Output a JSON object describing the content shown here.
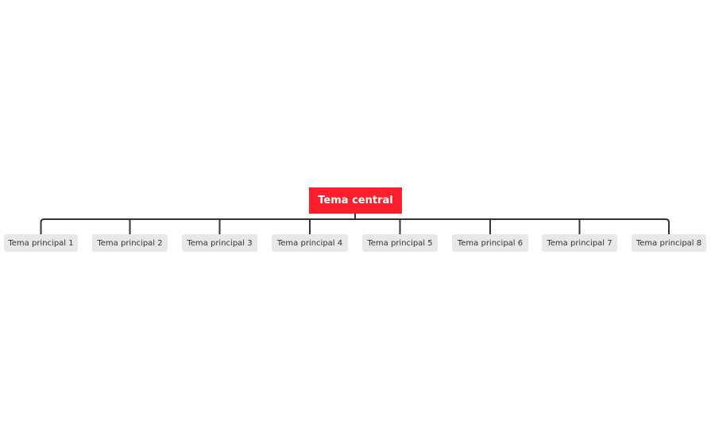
{
  "central_topic": {
    "label": "Tema central",
    "color": "#fb1f2e"
  },
  "main_topics": [
    {
      "label": "Tema principal 1"
    },
    {
      "label": "Tema principal 2"
    },
    {
      "label": "Tema principal 3"
    },
    {
      "label": "Tema principal 4"
    },
    {
      "label": "Tema principal 5"
    },
    {
      "label": "Tema principal 6"
    },
    {
      "label": "Tema principal 7"
    },
    {
      "label": "Tema principal 8"
    }
  ],
  "connector_color": "#333333",
  "topic_color": "#e8e8e8"
}
